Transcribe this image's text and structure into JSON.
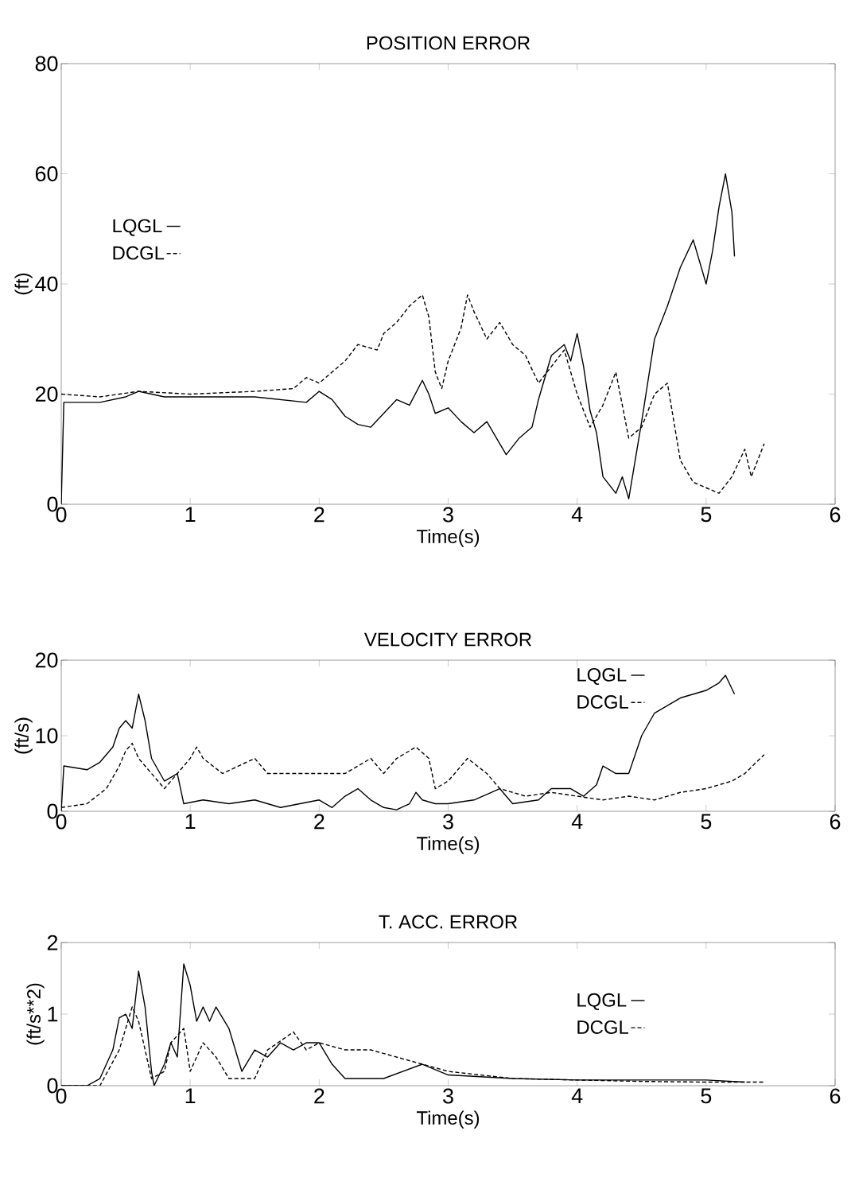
{
  "chart_data": [
    {
      "type": "line",
      "title": "POSITION ERROR",
      "xlabel": "Time(s)",
      "ylabel": "(ft)",
      "xlim": [
        0,
        6
      ],
      "ylim": [
        0,
        80
      ],
      "xticks": [
        0,
        1,
        2,
        3,
        4,
        5,
        6
      ],
      "yticks": [
        0,
        20,
        40,
        60,
        80
      ],
      "legend": "left",
      "grid": false,
      "series": [
        {
          "name": "LQGL",
          "color": "#000000",
          "line_style": "solid",
          "x": [
            0,
            0.02,
            0.3,
            0.5,
            0.6,
            0.8,
            1.5,
            1.9,
            2.0,
            2.1,
            2.2,
            2.3,
            2.4,
            2.5,
            2.6,
            2.7,
            2.8,
            2.85,
            2.9,
            3.0,
            3.1,
            3.2,
            3.3,
            3.4,
            3.45,
            3.55,
            3.65,
            3.7,
            3.8,
            3.9,
            3.95,
            4.0,
            4.05,
            4.1,
            4.15,
            4.2,
            4.3,
            4.35,
            4.4,
            4.5,
            4.6,
            4.7,
            4.8,
            4.9,
            4.95,
            5.0,
            5.05,
            5.1,
            5.15,
            5.2,
            5.22
          ],
          "values": [
            0,
            18.5,
            18.5,
            19.5,
            20.5,
            19.5,
            19.5,
            18.5,
            20.5,
            19,
            16,
            14.5,
            14,
            16.5,
            19,
            18,
            22.5,
            20,
            16.5,
            17.5,
            15,
            13,
            15,
            11,
            9,
            12,
            14,
            19,
            27,
            29,
            26,
            31,
            25,
            17,
            13,
            5,
            2,
            5,
            1,
            15,
            30,
            36,
            43,
            48,
            44,
            40,
            46,
            54,
            60,
            53,
            45
          ]
        },
        {
          "name": "DCGL",
          "color": "#000000",
          "line_style": "dashed",
          "x": [
            0,
            0.3,
            0.6,
            1.0,
            1.5,
            1.8,
            1.9,
            2.0,
            2.1,
            2.2,
            2.3,
            2.45,
            2.5,
            2.6,
            2.7,
            2.8,
            2.85,
            2.9,
            2.95,
            3.0,
            3.1,
            3.15,
            3.2,
            3.3,
            3.4,
            3.5,
            3.6,
            3.7,
            3.8,
            3.9,
            4.0,
            4.1,
            4.2,
            4.3,
            4.4,
            4.5,
            4.6,
            4.7,
            4.8,
            4.9,
            5.0,
            5.1,
            5.2,
            5.3,
            5.35,
            5.4,
            5.45
          ],
          "values": [
            20,
            19.5,
            20.5,
            20,
            20.5,
            21,
            23,
            22,
            24,
            26,
            29,
            28,
            31,
            33,
            36,
            38,
            34,
            24,
            21,
            26,
            32,
            38,
            35,
            30,
            33,
            29,
            27,
            22,
            25,
            28,
            20,
            14,
            18,
            24,
            12,
            14,
            20,
            22,
            8,
            4,
            3,
            2,
            5,
            10,
            5,
            8,
            11
          ]
        }
      ]
    },
    {
      "type": "line",
      "title": "VELOCITY ERROR",
      "xlabel": "Time(s)",
      "ylabel": "(ft/s)",
      "xlim": [
        0,
        6
      ],
      "ylim": [
        0,
        20
      ],
      "xticks": [
        0,
        1,
        2,
        3,
        4,
        5,
        6
      ],
      "yticks": [
        0,
        10,
        20
      ],
      "legend": "top right",
      "grid": false,
      "series": [
        {
          "name": "LQGL",
          "color": "#000000",
          "line_style": "solid",
          "x": [
            0,
            0.02,
            0.2,
            0.3,
            0.4,
            0.45,
            0.5,
            0.55,
            0.6,
            0.65,
            0.7,
            0.8,
            0.9,
            0.95,
            1.1,
            1.3,
            1.5,
            1.7,
            2.0,
            2.1,
            2.2,
            2.3,
            2.4,
            2.5,
            2.6,
            2.7,
            2.75,
            2.8,
            2.9,
            3.0,
            3.2,
            3.4,
            3.5,
            3.7,
            3.8,
            3.95,
            4.05,
            4.15,
            4.2,
            4.3,
            4.4,
            4.5,
            4.6,
            4.7,
            4.8,
            5.0,
            5.1,
            5.15,
            5.22
          ],
          "values": [
            0,
            6,
            5.5,
            6.5,
            8.5,
            11,
            12,
            11,
            15.5,
            12,
            7,
            4,
            5,
            1,
            1.5,
            1,
            1.5,
            0.5,
            1.5,
            0.5,
            2,
            3,
            1.5,
            0.5,
            0.2,
            1,
            2.5,
            1.5,
            1,
            1,
            1.5,
            3,
            1,
            1.5,
            3,
            3,
            2,
            3.5,
            6,
            5,
            5,
            10,
            13,
            14,
            15,
            16,
            17,
            18,
            15.5
          ]
        },
        {
          "name": "DCGL",
          "color": "#000000",
          "line_style": "dashed",
          "x": [
            0,
            0.2,
            0.35,
            0.45,
            0.5,
            0.55,
            0.6,
            0.7,
            0.8,
            0.9,
            1.0,
            1.05,
            1.1,
            1.25,
            1.5,
            1.6,
            1.8,
            2.0,
            2.2,
            2.4,
            2.5,
            2.6,
            2.75,
            2.85,
            2.9,
            3.0,
            3.1,
            3.15,
            3.3,
            3.4,
            3.6,
            3.8,
            4.0,
            4.2,
            4.4,
            4.6,
            4.8,
            5.0,
            5.2,
            5.3,
            5.45
          ],
          "values": [
            0.5,
            1,
            3,
            6,
            8,
            9,
            7,
            5,
            3,
            5,
            7,
            8.5,
            7,
            5,
            7,
            5,
            5,
            5,
            5,
            7,
            5,
            7,
            8.5,
            7,
            3,
            4,
            6,
            7,
            5,
            3,
            2,
            2.5,
            2,
            1.5,
            2,
            1.5,
            2.5,
            3,
            4,
            5,
            7.5
          ]
        }
      ]
    },
    {
      "type": "line",
      "title": "T. ACC. ERROR",
      "xlabel": "Time(s)",
      "ylabel": "(ft/s**2)",
      "xlim": [
        0,
        6
      ],
      "ylim": [
        0,
        2
      ],
      "xticks": [
        0,
        1,
        2,
        3,
        4,
        5,
        6
      ],
      "yticks": [
        0,
        1,
        2
      ],
      "legend": "right",
      "grid": false,
      "series": [
        {
          "name": "LQGL",
          "color": "#000000",
          "line_style": "solid",
          "x": [
            0,
            0.2,
            0.3,
            0.4,
            0.45,
            0.5,
            0.55,
            0.6,
            0.65,
            0.7,
            0.72,
            0.8,
            0.85,
            0.9,
            0.95,
            1.0,
            1.05,
            1.1,
            1.15,
            1.2,
            1.3,
            1.4,
            1.5,
            1.6,
            1.7,
            1.8,
            1.9,
            2.0,
            2.1,
            2.2,
            2.5,
            2.8,
            3.0,
            3.5,
            4.0,
            4.5,
            5.0,
            5.3
          ],
          "values": [
            0,
            0,
            0.1,
            0.5,
            0.95,
            1.0,
            0.8,
            1.6,
            1.1,
            0.2,
            0,
            0.3,
            0.6,
            0.4,
            1.7,
            1.4,
            0.9,
            1.1,
            0.9,
            1.1,
            0.8,
            0.2,
            0.5,
            0.4,
            0.6,
            0.5,
            0.6,
            0.6,
            0.3,
            0.1,
            0.1,
            0.3,
            0.15,
            0.1,
            0.08,
            0.08,
            0.08,
            0.05
          ]
        },
        {
          "name": "DCGL",
          "color": "#000000",
          "line_style": "dashed",
          "x": [
            0,
            0.3,
            0.45,
            0.55,
            0.6,
            0.7,
            0.8,
            0.85,
            0.95,
            1.0,
            1.1,
            1.2,
            1.3,
            1.5,
            1.6,
            1.8,
            1.9,
            2.0,
            2.2,
            2.4,
            2.6,
            2.8,
            3.0,
            3.5,
            4.0,
            4.5,
            5.0,
            5.45
          ],
          "values": [
            0,
            0,
            0.5,
            1.1,
            0.9,
            0.1,
            0.2,
            0.6,
            0.8,
            0.2,
            0.6,
            0.4,
            0.1,
            0.1,
            0.5,
            0.75,
            0.5,
            0.6,
            0.5,
            0.5,
            0.4,
            0.3,
            0.2,
            0.1,
            0.08,
            0.06,
            0.05,
            0.05
          ]
        }
      ]
    }
  ]
}
